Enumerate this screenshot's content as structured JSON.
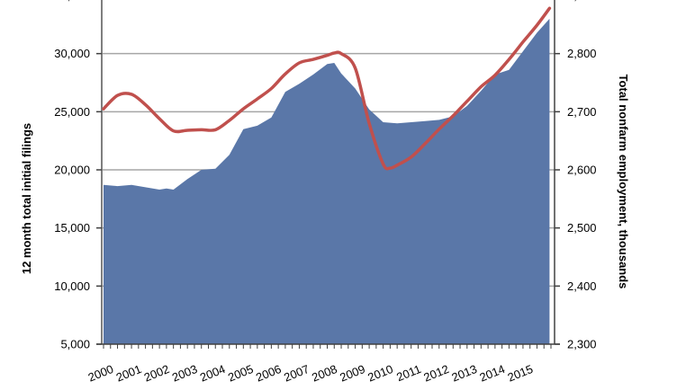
{
  "chart_data": {
    "type": "area+line",
    "title": "",
    "xlabel": "",
    "ylabel": "12 month total initial filings",
    "y2label": "Total nonfarm employment, thousands",
    "x_tick_labels": [
      "2000",
      "2001",
      "2002",
      "2003",
      "2004",
      "2005",
      "2006",
      "2007",
      "2008",
      "2009",
      "2010",
      "2011",
      "2012",
      "2013",
      "2014",
      "2015"
    ],
    "ylim": [
      5000,
      35000
    ],
    "y_ticks": [
      5000,
      10000,
      15000,
      20000,
      25000,
      30000
    ],
    "y_tick_labels": [
      "5,000",
      "10,000",
      "15,000",
      "20,000",
      "25,000",
      "30,000"
    ],
    "y2lim": [
      2300,
      2900
    ],
    "y2_ticks": [
      2300,
      2400,
      2500,
      2600,
      2700,
      2800
    ],
    "y2_tick_labels": [
      "2,300",
      "2,400",
      "2,500",
      "2,600",
      "2,700",
      "2,800"
    ],
    "grid": "horizontal",
    "legend": "none",
    "series": [
      {
        "name": "12 month total initial filings",
        "type": "area",
        "axis": "left",
        "color": "#5a77a8",
        "x": [
          2000.0,
          2000.5,
          2001.0,
          2001.5,
          2002.0,
          2002.25,
          2002.5,
          2003.0,
          2003.5,
          2004.0,
          2004.5,
          2005.0,
          2005.5,
          2006.0,
          2006.5,
          2007.0,
          2007.5,
          2008.0,
          2008.25,
          2008.5,
          2009.0,
          2009.5,
          2010.0,
          2010.5,
          2011.0,
          2011.5,
          2012.0,
          2012.5,
          2013.0,
          2013.5,
          2014.0,
          2014.5,
          2015.0,
          2015.5,
          2015.95
        ],
        "values": [
          18700,
          18600,
          18700,
          18500,
          18300,
          18400,
          18300,
          19200,
          20000,
          20100,
          21300,
          23500,
          23800,
          24500,
          26700,
          27400,
          28200,
          29100,
          29200,
          28300,
          27000,
          25200,
          24100,
          24000,
          24100,
          24200,
          24300,
          24600,
          25500,
          26800,
          28200,
          28600,
          30200,
          31800,
          33000
        ]
      },
      {
        "name": "Total nonfarm employment, thousands",
        "type": "line",
        "axis": "right",
        "color": "#c0504d",
        "x": [
          2000.0,
          2000.5,
          2001.0,
          2001.5,
          2002.0,
          2002.5,
          2003.0,
          2003.5,
          2004.0,
          2004.5,
          2005.0,
          2005.5,
          2006.0,
          2006.5,
          2007.0,
          2007.5,
          2008.0,
          2008.25,
          2008.5,
          2009.0,
          2009.5,
          2010.0,
          2010.25,
          2010.5,
          2011.0,
          2011.5,
          2012.0,
          2012.5,
          2013.0,
          2013.5,
          2014.0,
          2014.5,
          2015.0,
          2015.5,
          2015.95
        ],
        "values": [
          2705,
          2728,
          2730,
          2712,
          2688,
          2667,
          2668,
          2669,
          2669,
          2685,
          2705,
          2722,
          2740,
          2765,
          2784,
          2790,
          2797,
          2801,
          2800,
          2775,
          2680,
          2610,
          2603,
          2608,
          2622,
          2645,
          2670,
          2693,
          2718,
          2743,
          2763,
          2790,
          2820,
          2849,
          2878
        ]
      }
    ]
  },
  "axes": {
    "left_title": "12 month total initial filings",
    "right_title": "Total nonfarm employment, thousands"
  }
}
